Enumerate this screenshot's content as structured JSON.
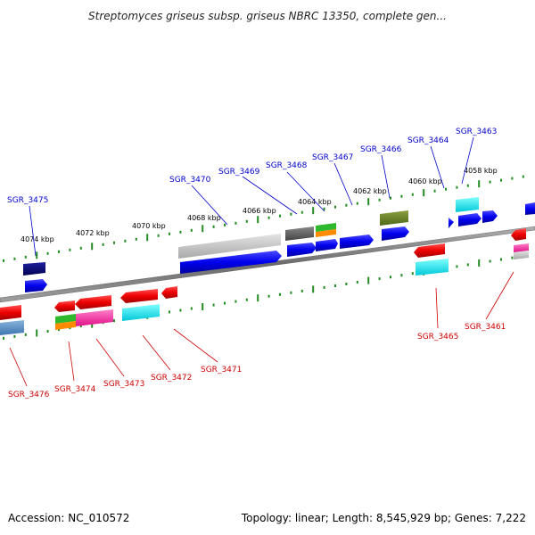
{
  "title": "Streptomyces griseus subsp. griseus NBRC 13350, complete gen...",
  "footer": {
    "accession": "Accession: NC_010572",
    "summary": "Topology: linear; Length: 8,545,929 bp; Genes: 7,222"
  },
  "kbp_ticks": [
    "4074 kbp",
    "4072 kbp",
    "4070 kbp",
    "4068 kbp",
    "4066 kbp",
    "4064 kbp",
    "4062 kbp",
    "4060 kbp",
    "4058 kbp"
  ],
  "genes_top": [
    "SGR_3475",
    "SGR_3470",
    "SGR_3469",
    "SGR_3468",
    "SGR_3467",
    "SGR_3466",
    "SGR_3464",
    "SGR_3463"
  ],
  "genes_bottom": [
    "SGR_3476",
    "SGR_3474",
    "SGR_3473",
    "SGR_3472",
    "SGR_3471",
    "SGR_3465",
    "SGR_3461"
  ],
  "colors": {
    "forward_label": "#0000cc",
    "reverse_label": "#cc0000",
    "tick": "#228b22",
    "backbone": "#808080"
  }
}
